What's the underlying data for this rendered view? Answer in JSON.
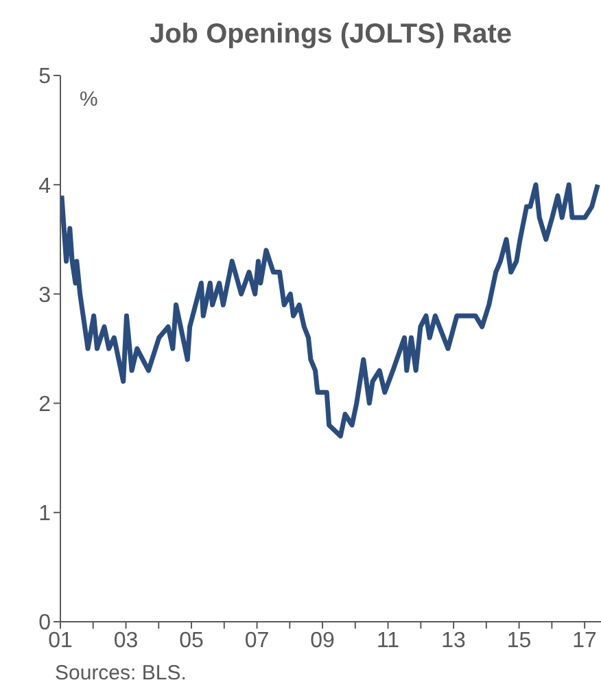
{
  "chart_data": {
    "type": "line",
    "title": "Job Openings (JOLTS) Rate",
    "ylabel": "%",
    "annotations": [
      "Sources: BLS."
    ],
    "x": [
      2001.04,
      2001.18,
      2001.29,
      2001.36,
      2001.46,
      2001.5,
      2001.6,
      2001.84,
      2002.02,
      2002.12,
      2002.34,
      2002.48,
      2002.64,
      2002.92,
      2003.02,
      2003.18,
      2003.34,
      2003.69,
      2004.01,
      2004.29,
      2004.43,
      2004.53,
      2004.88,
      2004.95,
      2005.3,
      2005.36,
      2005.57,
      2005.64,
      2005.85,
      2005.97,
      2006.24,
      2006.52,
      2006.76,
      2006.94,
      2007.04,
      2007.11,
      2007.28,
      2007.5,
      2007.69,
      2007.83,
      2008.02,
      2008.11,
      2008.29,
      2008.44,
      2008.57,
      2008.64,
      2008.78,
      2008.85,
      2009.13,
      2009.2,
      2009.55,
      2009.69,
      2009.9,
      2010.04,
      2010.25,
      2010.43,
      2010.53,
      2010.74,
      2010.9,
      2011.15,
      2011.5,
      2011.57,
      2011.71,
      2011.85,
      2011.99,
      2012.16,
      2012.27,
      2012.44,
      2012.83,
      2013.1,
      2013.67,
      2013.87,
      2014.08,
      2014.29,
      2014.43,
      2014.61,
      2014.75,
      2014.92,
      2015.03,
      2015.23,
      2015.34,
      2015.51,
      2015.62,
      2015.82,
      2016.01,
      2016.18,
      2016.31,
      2016.52,
      2016.62,
      2017.01,
      2017.22,
      2017.4
    ],
    "series": [
      {
        "color": "#2a4d7e",
        "values": [
          3.9,
          3.3,
          3.6,
          3.3,
          3.1,
          3.3,
          3.0,
          2.5,
          2.8,
          2.5,
          2.7,
          2.5,
          2.6,
          2.2,
          2.8,
          2.3,
          2.5,
          2.3,
          2.6,
          2.7,
          2.5,
          2.9,
          2.4,
          2.7,
          3.1,
          2.8,
          3.1,
          2.9,
          3.1,
          2.9,
          3.3,
          3.0,
          3.2,
          3.0,
          3.3,
          3.1,
          3.4,
          3.2,
          3.2,
          2.9,
          3.0,
          2.8,
          2.9,
          2.7,
          2.6,
          2.4,
          2.3,
          2.1,
          2.1,
          1.8,
          1.7,
          1.9,
          1.8,
          2.0,
          2.4,
          2.0,
          2.2,
          2.3,
          2.1,
          2.3,
          2.6,
          2.3,
          2.6,
          2.3,
          2.7,
          2.8,
          2.6,
          2.8,
          2.5,
          2.8,
          2.8,
          2.7,
          2.9,
          3.2,
          3.3,
          3.5,
          3.2,
          3.3,
          3.5,
          3.8,
          3.8,
          4.0,
          3.7,
          3.5,
          3.7,
          3.9,
          3.7,
          4.0,
          3.7,
          3.7,
          3.8,
          4.0
        ]
      }
    ],
    "xlim": [
      2001,
      2017.5
    ],
    "xticks": [
      {
        "value": 2001,
        "label": "01"
      },
      {
        "value": 2002,
        "label": null
      },
      {
        "value": 2003,
        "label": "03"
      },
      {
        "value": 2004,
        "label": null
      },
      {
        "value": 2005,
        "label": "05"
      },
      {
        "value": 2006,
        "label": null
      },
      {
        "value": 2007,
        "label": "07"
      },
      {
        "value": 2008,
        "label": null
      },
      {
        "value": 2009,
        "label": "09"
      },
      {
        "value": 2010,
        "label": null
      },
      {
        "value": 2011,
        "label": "11"
      },
      {
        "value": 2012,
        "label": null
      },
      {
        "value": 2013,
        "label": "13"
      },
      {
        "value": 2014,
        "label": null
      },
      {
        "value": 2015,
        "label": "15"
      },
      {
        "value": 2016,
        "label": null
      },
      {
        "value": 2017,
        "label": "17"
      }
    ],
    "ylim": [
      0,
      5
    ],
    "yticks": [
      0,
      1,
      2,
      3,
      4,
      5
    ],
    "marker": "none",
    "line_style": "solid"
  }
}
